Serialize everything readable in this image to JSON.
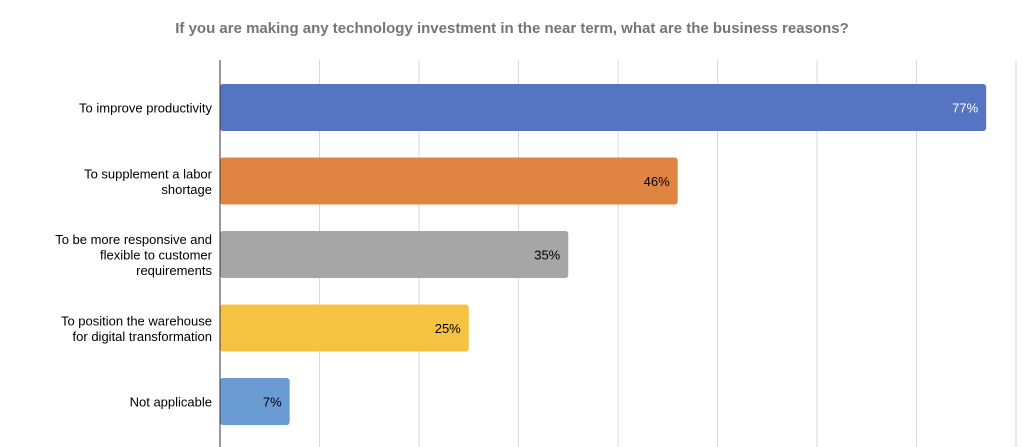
{
  "chart_data": {
    "type": "bar",
    "orientation": "horizontal",
    "title": "If you are making any technology investment in the near term, what are the business reasons?",
    "categories": [
      [
        "To improve productivity"
      ],
      [
        "To supplement a labor",
        "shortage"
      ],
      [
        "To be more responsive and",
        "flexible to customer",
        "requirements"
      ],
      [
        "To position the warehouse",
        "for digital transformation"
      ],
      [
        "Not applicable"
      ]
    ],
    "values": [
      77,
      46,
      35,
      25,
      7
    ],
    "value_labels": [
      "77%",
      "46%",
      "35%",
      "25%",
      "7%"
    ],
    "colors": [
      "#5574c2",
      "#e08443",
      "#a6a6a6",
      "#f5c242",
      "#6a9bd3"
    ],
    "value_label_colors": [
      "#ffffff",
      "#000000",
      "#000000",
      "#000000",
      "#000000"
    ],
    "xlim": [
      0,
      80
    ],
    "grid": true,
    "gridline_step": 10
  }
}
